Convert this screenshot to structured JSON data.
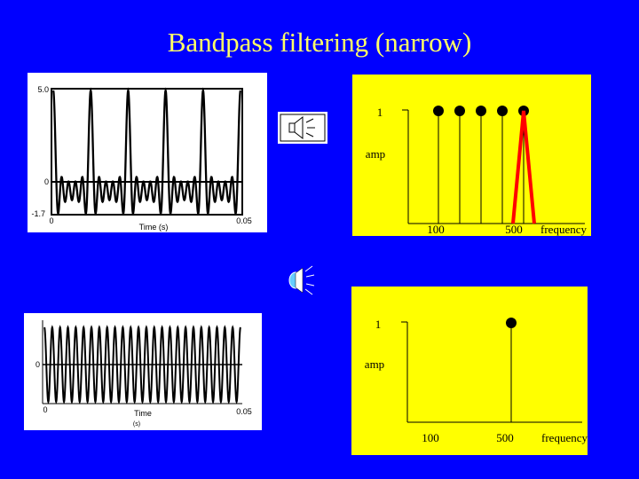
{
  "title": "Bandpass filtering  (narrow)",
  "colors": {
    "background": "#0000ff",
    "title": "#ffff66",
    "plot_panel": "#ffffff",
    "spectrum_panel": "#ffff00",
    "filter": "#ff0000",
    "speaker_fill": "#ffffff",
    "speaker_active": "#66ccff"
  },
  "icons": {
    "speaker_top": "speaker-icon",
    "speaker_bottom": "speaker-icon"
  },
  "chart_data": [
    {
      "type": "line",
      "name": "input-waveform",
      "xlabel": "Time (s)",
      "x_ticks": [
        "0",
        "0.05"
      ],
      "y_ticks": [
        "5.0",
        "0",
        "-1.7"
      ],
      "xlim": [
        0,
        0.05
      ],
      "ylim": [
        -1.7,
        5.0
      ],
      "components_hz": [
        100,
        200,
        300,
        400,
        500
      ],
      "component_amps": [
        1,
        1,
        1,
        1,
        1
      ]
    },
    {
      "type": "scatter",
      "name": "input-spectrum",
      "xlabel": "frequency",
      "ylabel": "amp",
      "y_tick": "1",
      "x_ticks": [
        "100",
        "500"
      ],
      "x": [
        100,
        200,
        300,
        400,
        500
      ],
      "y": [
        1,
        1,
        1,
        1,
        1
      ],
      "filter_band_hz": [
        450,
        550
      ]
    },
    {
      "type": "line",
      "name": "output-waveform",
      "xlabel": "Time",
      "xlabel_line2": "(s)",
      "x_ticks": [
        "0",
        "0.05"
      ],
      "y_ticks": [
        "0"
      ],
      "xlim": [
        0,
        0.05
      ],
      "ylim": [
        -1,
        1
      ],
      "components_hz": [
        500
      ],
      "component_amps": [
        1
      ]
    },
    {
      "type": "scatter",
      "name": "output-spectrum",
      "xlabel": "frequency",
      "ylabel": "amp",
      "y_tick": "1",
      "x_ticks": [
        "100",
        "500"
      ],
      "x": [
        500
      ],
      "y": [
        1
      ]
    }
  ]
}
